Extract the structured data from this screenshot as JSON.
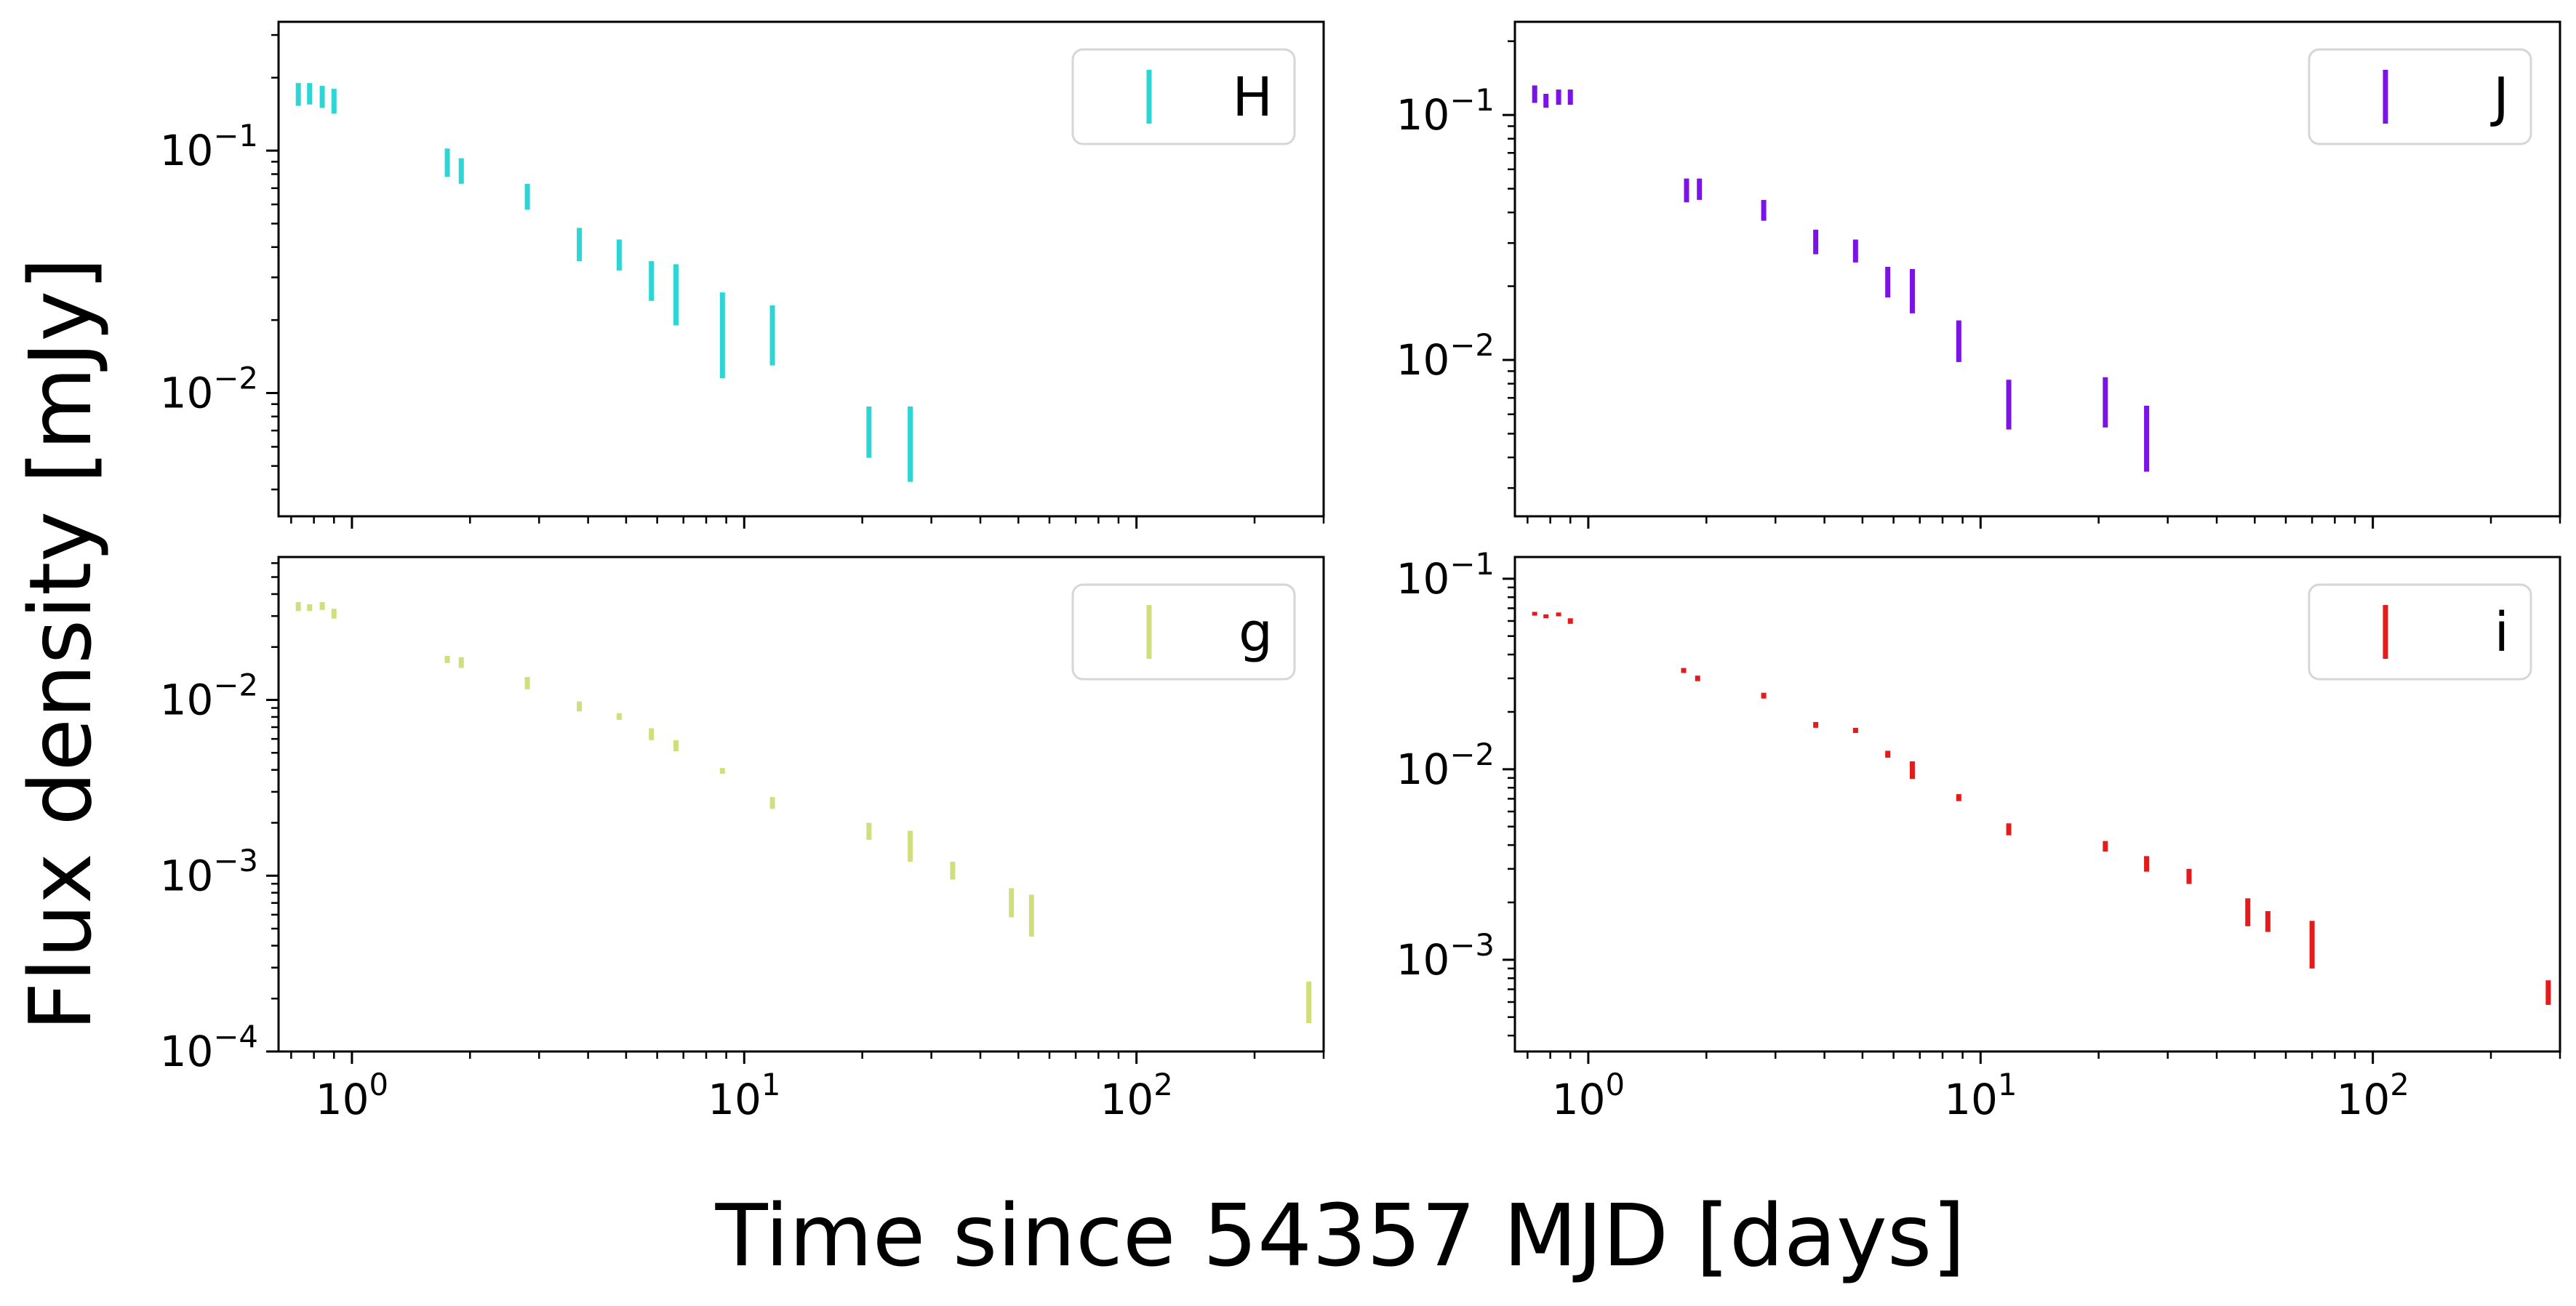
{
  "figure": {
    "ylabel": "Flux density [mJy]",
    "xlabel": "Time since 54357 MJD [days]"
  },
  "chart_data": [
    {
      "type": "scatter",
      "panel": "top-left",
      "legend": "H",
      "legend_position": "top-right",
      "color": "#2dd5d5",
      "x_scale": "log",
      "y_scale": "log",
      "xlim": [
        0.65,
        300
      ],
      "ylim": [
        0.0031,
        0.34
      ],
      "x_ticks": [
        {
          "value": 1,
          "label": "10^0"
        },
        {
          "value": 10,
          "label": "10^1"
        },
        {
          "value": 100,
          "label": "10^2"
        }
      ],
      "y_ticks": [
        {
          "value": 0.1,
          "label": "10^-1"
        },
        {
          "value": 0.01,
          "label": "10^-2"
        }
      ],
      "points": [
        {
          "x": 0.73,
          "y_low": 0.153,
          "y_high": 0.19
        },
        {
          "x": 0.78,
          "y_low": 0.155,
          "y_high": 0.19
        },
        {
          "x": 0.84,
          "y_low": 0.15,
          "y_high": 0.185
        },
        {
          "x": 0.9,
          "y_low": 0.142,
          "y_high": 0.18
        },
        {
          "x": 1.75,
          "y_low": 0.078,
          "y_high": 0.102
        },
        {
          "x": 1.9,
          "y_low": 0.073,
          "y_high": 0.093
        },
        {
          "x": 2.8,
          "y_low": 0.057,
          "y_high": 0.073
        },
        {
          "x": 3.8,
          "y_low": 0.035,
          "y_high": 0.048
        },
        {
          "x": 4.8,
          "y_low": 0.032,
          "y_high": 0.043
        },
        {
          "x": 5.8,
          "y_low": 0.024,
          "y_high": 0.035
        },
        {
          "x": 6.7,
          "y_low": 0.019,
          "y_high": 0.034
        },
        {
          "x": 8.8,
          "y_low": 0.0115,
          "y_high": 0.026
        },
        {
          "x": 11.8,
          "y_low": 0.013,
          "y_high": 0.023
        },
        {
          "x": 20.8,
          "y_low": 0.0054,
          "y_high": 0.0088
        },
        {
          "x": 26.5,
          "y_low": 0.0043,
          "y_high": 0.0088
        }
      ]
    },
    {
      "type": "scatter",
      "panel": "top-right",
      "legend": "J",
      "legend_position": "top-right",
      "color": "#7b12e6",
      "x_scale": "log",
      "y_scale": "log",
      "xlim": [
        0.65,
        300
      ],
      "ylim": [
        0.0023,
        0.24
      ],
      "x_ticks": [
        {
          "value": 1,
          "label": "10^0"
        },
        {
          "value": 10,
          "label": "10^1"
        },
        {
          "value": 100,
          "label": "10^2"
        }
      ],
      "y_ticks": [
        {
          "value": 0.1,
          "label": "10^-1"
        },
        {
          "value": 0.01,
          "label": "10^-2"
        }
      ],
      "points": [
        {
          "x": 0.73,
          "y_low": 0.112,
          "y_high": 0.132
        },
        {
          "x": 0.78,
          "y_low": 0.107,
          "y_high": 0.122
        },
        {
          "x": 0.84,
          "y_low": 0.11,
          "y_high": 0.127
        },
        {
          "x": 0.9,
          "y_low": 0.11,
          "y_high": 0.127
        },
        {
          "x": 1.78,
          "y_low": 0.044,
          "y_high": 0.055
        },
        {
          "x": 1.92,
          "y_low": 0.045,
          "y_high": 0.055
        },
        {
          "x": 2.8,
          "y_low": 0.037,
          "y_high": 0.045
        },
        {
          "x": 3.8,
          "y_low": 0.027,
          "y_high": 0.034
        },
        {
          "x": 4.8,
          "y_low": 0.025,
          "y_high": 0.031
        },
        {
          "x": 5.8,
          "y_low": 0.018,
          "y_high": 0.024
        },
        {
          "x": 6.7,
          "y_low": 0.0155,
          "y_high": 0.0235
        },
        {
          "x": 8.8,
          "y_low": 0.0098,
          "y_high": 0.0145
        },
        {
          "x": 11.8,
          "y_low": 0.0052,
          "y_high": 0.0083
        },
        {
          "x": 20.8,
          "y_low": 0.0053,
          "y_high": 0.0085
        },
        {
          "x": 26.5,
          "y_low": 0.0035,
          "y_high": 0.0065
        }
      ]
    },
    {
      "type": "scatter",
      "panel": "bottom-left",
      "legend": "g",
      "legend_position": "top-right",
      "color": "#d1de7e",
      "x_scale": "log",
      "y_scale": "log",
      "xlim": [
        0.65,
        300
      ],
      "ylim": [
        0.0001,
        0.065
      ],
      "x_ticks": [
        {
          "value": 1,
          "label": "10^0"
        },
        {
          "value": 10,
          "label": "10^1"
        },
        {
          "value": 100,
          "label": "10^2"
        }
      ],
      "y_ticks": [
        {
          "value": 0.01,
          "label": "10^-2"
        },
        {
          "value": 0.001,
          "label": "10^-3"
        },
        {
          "value": 0.0001,
          "label": "10^-4"
        }
      ],
      "points": [
        {
          "x": 0.73,
          "y_low": 0.032,
          "y_high": 0.036
        },
        {
          "x": 0.78,
          "y_low": 0.032,
          "y_high": 0.035
        },
        {
          "x": 0.84,
          "y_low": 0.0325,
          "y_high": 0.036
        },
        {
          "x": 0.9,
          "y_low": 0.029,
          "y_high": 0.033
        },
        {
          "x": 1.75,
          "y_low": 0.0162,
          "y_high": 0.0178
        },
        {
          "x": 1.9,
          "y_low": 0.0152,
          "y_high": 0.0175
        },
        {
          "x": 2.8,
          "y_low": 0.0115,
          "y_high": 0.0135
        },
        {
          "x": 3.8,
          "y_low": 0.0086,
          "y_high": 0.0098
        },
        {
          "x": 4.8,
          "y_low": 0.0077,
          "y_high": 0.0084
        },
        {
          "x": 5.8,
          "y_low": 0.0059,
          "y_high": 0.0069
        },
        {
          "x": 6.7,
          "y_low": 0.0051,
          "y_high": 0.0059
        },
        {
          "x": 8.8,
          "y_low": 0.0038,
          "y_high": 0.0041
        },
        {
          "x": 11.8,
          "y_low": 0.0024,
          "y_high": 0.0028
        },
        {
          "x": 20.8,
          "y_low": 0.0016,
          "y_high": 0.002
        },
        {
          "x": 26.5,
          "y_low": 0.0012,
          "y_high": 0.0018
        },
        {
          "x": 34,
          "y_low": 0.00095,
          "y_high": 0.0012
        },
        {
          "x": 48,
          "y_low": 0.00058,
          "y_high": 0.00085
        },
        {
          "x": 54,
          "y_low": 0.00045,
          "y_high": 0.00078
        },
        {
          "x": 275,
          "y_low": 0.000145,
          "y_high": 0.00025
        }
      ]
    },
    {
      "type": "scatter",
      "panel": "bottom-right",
      "legend": "i",
      "legend_position": "top-right",
      "color": "#e51b1b",
      "x_scale": "log",
      "y_scale": "log",
      "xlim": [
        0.65,
        300
      ],
      "ylim": [
        0.00033,
        0.13
      ],
      "x_ticks": [
        {
          "value": 1,
          "label": "10^0"
        },
        {
          "value": 10,
          "label": "10^1"
        },
        {
          "value": 100,
          "label": "10^2"
        }
      ],
      "y_ticks": [
        {
          "value": 0.1,
          "label": "10^-1"
        },
        {
          "value": 0.01,
          "label": "10^-2"
        },
        {
          "value": 0.001,
          "label": "10^-3"
        }
      ],
      "points": [
        {
          "x": 0.73,
          "y_low": 0.064,
          "y_high": 0.067
        },
        {
          "x": 0.78,
          "y_low": 0.062,
          "y_high": 0.065
        },
        {
          "x": 0.84,
          "y_low": 0.0635,
          "y_high": 0.0665
        },
        {
          "x": 0.9,
          "y_low": 0.058,
          "y_high": 0.062
        },
        {
          "x": 1.75,
          "y_low": 0.032,
          "y_high": 0.034
        },
        {
          "x": 1.9,
          "y_low": 0.029,
          "y_high": 0.031
        },
        {
          "x": 2.8,
          "y_low": 0.0235,
          "y_high": 0.0252
        },
        {
          "x": 3.8,
          "y_low": 0.0165,
          "y_high": 0.0177
        },
        {
          "x": 4.8,
          "y_low": 0.0155,
          "y_high": 0.0165
        },
        {
          "x": 5.8,
          "y_low": 0.0115,
          "y_high": 0.0125
        },
        {
          "x": 6.7,
          "y_low": 0.0089,
          "y_high": 0.011
        },
        {
          "x": 8.8,
          "y_low": 0.0068,
          "y_high": 0.0074
        },
        {
          "x": 11.8,
          "y_low": 0.0045,
          "y_high": 0.0052
        },
        {
          "x": 20.8,
          "y_low": 0.0037,
          "y_high": 0.0042
        },
        {
          "x": 26.5,
          "y_low": 0.0029,
          "y_high": 0.0035
        },
        {
          "x": 34,
          "y_low": 0.0025,
          "y_high": 0.003
        },
        {
          "x": 48,
          "y_low": 0.0015,
          "y_high": 0.0021
        },
        {
          "x": 54,
          "y_low": 0.0014,
          "y_high": 0.0018
        },
        {
          "x": 70,
          "y_low": 0.0009,
          "y_high": 0.0016
        },
        {
          "x": 280,
          "y_low": 0.00058,
          "y_high": 0.00078
        }
      ]
    }
  ]
}
